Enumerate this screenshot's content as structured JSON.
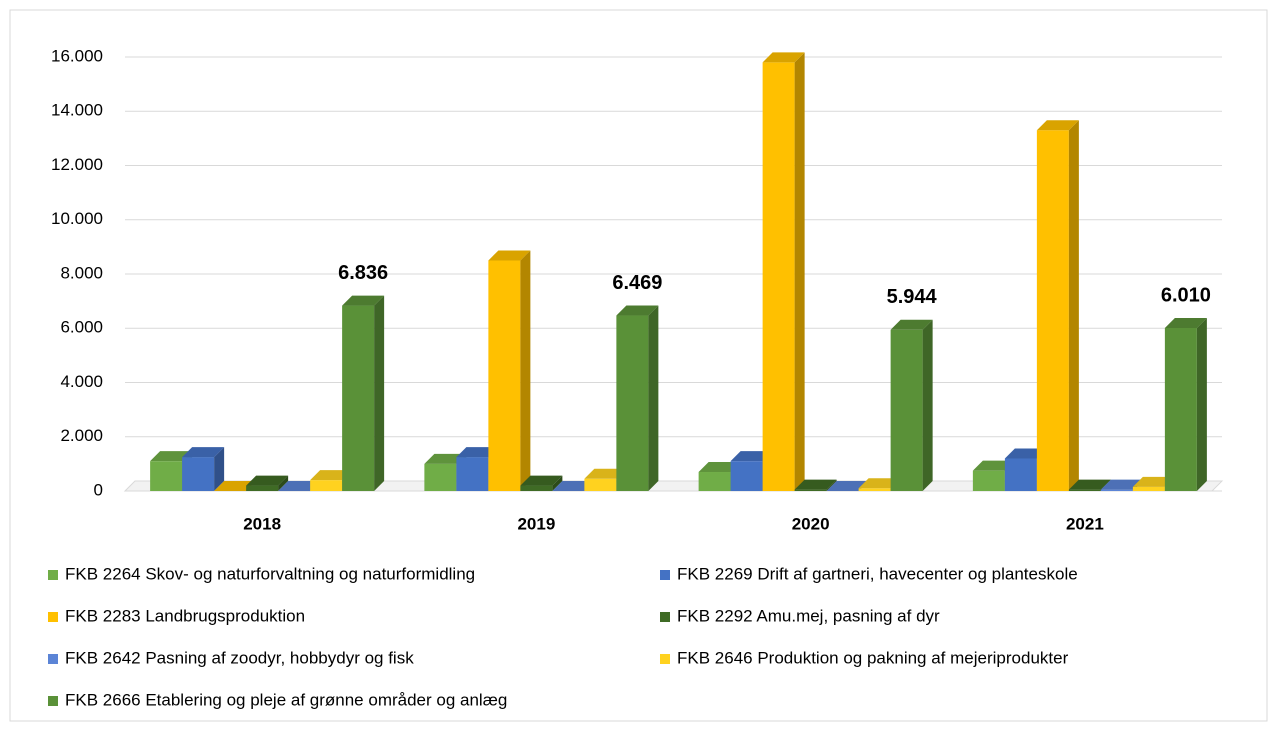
{
  "chart_data": {
    "type": "bar3d",
    "categories": [
      "2018",
      "2019",
      "2020",
      "2021"
    ],
    "series": [
      {
        "name": "FKB 2264 Skov- og naturforvaltning og naturformidling",
        "color": "#70ad47",
        "values": [
          1100,
          1000,
          700,
          750
        ]
      },
      {
        "name": "FKB 2269 Drift af gartneri, havecenter og planteskole",
        "color": "#4472c4",
        "values": [
          1250,
          1250,
          1100,
          1200
        ]
      },
      {
        "name": "FKB 2283 Landbrugsproduktion",
        "color": "#ffc000",
        "values": [
          0,
          8500,
          15800,
          13300
        ]
      },
      {
        "name": "FKB 2292 Amu.mej, pasning af dyr",
        "color": "#3f6b25",
        "values": [
          200,
          200,
          50,
          50
        ]
      },
      {
        "name": "FKB 2642 Pasning af zoodyr, hobbydyr og fisk",
        "color": "#5b84d6",
        "values": [
          0,
          0,
          0,
          50
        ]
      },
      {
        "name": "FKB 2646 Produktion og pakning af mejeriprodukter",
        "color": "#ffd21f",
        "values": [
          400,
          450,
          100,
          150
        ]
      },
      {
        "name": "FKB 2666 Etablering og pleje af grønne områder og anlæg",
        "color": "#5a9138",
        "values": [
          6836,
          6469,
          5944,
          6010
        ],
        "value_labels": [
          "6.836",
          "6.469",
          "5.944",
          "6.010"
        ]
      }
    ],
    "ylim": [
      0,
      16000
    ],
    "yticks": [
      0,
      {
        "value": 2000,
        "label": "2.000"
      },
      {
        "value": 4000,
        "label": "4.000"
      },
      {
        "value": 6000,
        "label": "6.000"
      },
      {
        "value": 8000,
        "label": "8.000"
      },
      {
        "value": 10000,
        "label": "10.000"
      },
      {
        "value": 12000,
        "label": "12.000"
      },
      {
        "value": 14000,
        "label": "14.000"
      },
      {
        "value": 16000,
        "label": "16.000"
      }
    ],
    "grid": true,
    "legend": "bottom"
  }
}
